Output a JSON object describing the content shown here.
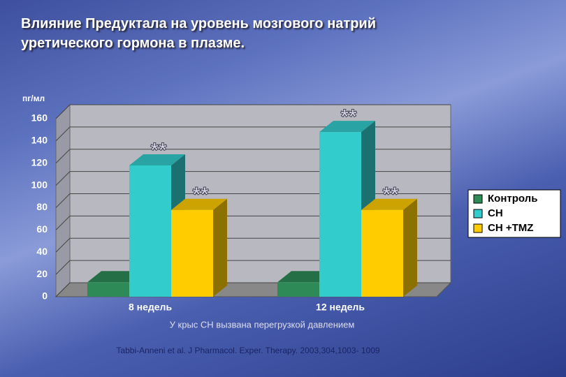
{
  "chart_data": {
    "type": "bar3d",
    "title": "Влияние Предуктала  на уровень мозгового натрий уретического гормона в плазме.",
    "y_label": "пг/мл",
    "categories": [
      "8 недель",
      "12 недель"
    ],
    "series": [
      {
        "name": "Контроль",
        "color": "#2e8b57",
        "values": [
          13,
          13
        ]
      },
      {
        "name": "СН",
        "color": "#33cccc",
        "values": [
          118,
          148
        ]
      },
      {
        "name": "СН +TMZ",
        "color": "#ffcc00",
        "values": [
          78,
          78
        ]
      }
    ],
    "annotations": [
      "**",
      "**",
      "**",
      "**"
    ],
    "subtitle": "У крыс СН вызвана перегрузкой давлением",
    "source": "Tabbi-Anneni et al. J Pharmacol. Exper. Therapy. 2003,304,1003- 1009",
    "ylim": [
      0,
      160
    ],
    "yticks": [
      0,
      20,
      40,
      60,
      80,
      100,
      120,
      140,
      160
    ],
    "grid": true,
    "legend": "right"
  }
}
